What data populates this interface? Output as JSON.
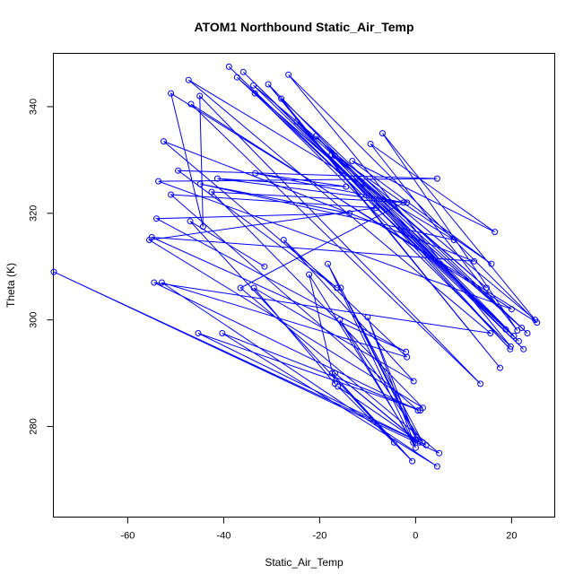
{
  "chart_data": {
    "type": "line",
    "title": "ATOM1 Northbound Static_Air_Temp",
    "xlabel": "Static_Air_Temp",
    "ylabel": "Theta (K)",
    "xlim": [
      -75.5,
      29
    ],
    "ylim": [
      263,
      350
    ],
    "xticks": [
      -60,
      -40,
      -20,
      0,
      20
    ],
    "yticks": [
      280,
      300,
      320,
      340
    ],
    "grid": false,
    "legend": "none",
    "colors": {
      "series": "#0000ff",
      "axes": "#000000"
    },
    "series": [
      {
        "x": [
          -38.9,
          22.5,
          -35.9,
          20.5,
          -30.7,
          17.6,
          -28.0,
          23.3,
          -24.8,
          19.7,
          -20.7,
          18.8,
          -17.5,
          14.8,
          -16.8,
          15.8,
          -13.2,
          16.5,
          -9.4,
          21.2,
          -6.9,
          24.9,
          -33.8,
          21.5,
          -37.2,
          22.1,
          -33.5,
          19.8,
          -26.5,
          25.3,
          -51.0,
          -44.3,
          -45.0,
          13.5,
          -46.8,
          20.0,
          -53.6,
          4.5,
          -49.5,
          -16.4,
          -52.5,
          12.2,
          -55.0,
          -2.0,
          -54.0,
          -13.8,
          -44.9,
          8.0,
          -47.3,
          15.6,
          -54.5,
          0.5,
          -51.0,
          -8.2,
          -55.5,
          1.5,
          -42.5,
          -1.8,
          -41.3,
          -14.5,
          -33.4,
          -2.5,
          -36.5,
          4.9,
          -75.4,
          2.2,
          -45.3,
          1.0,
          -40.3,
          4.5,
          -52.9,
          -1.8,
          -27.5,
          -0.4,
          -33.7,
          -16.8,
          -22.2,
          -0.5,
          -18.3,
          1.5,
          -15.8,
          0.0,
          -10.0,
          0.2,
          -15.6,
          0.8,
          -16.8,
          0.0,
          -16.2,
          -0.7,
          -17.4,
          -4.5,
          -47.0,
          -31.5
        ],
        "y": [
          347.5,
          294.5,
          346.5,
          297.0,
          344.2,
          291.0,
          341.5,
          297.5,
          337.2,
          294.5,
          334.5,
          298.2,
          331.0,
          306.0,
          330.8,
          310.5,
          329.8,
          316.5,
          333.0,
          298.0,
          335.0,
          300.0,
          344.0,
          296.0,
          345.5,
          298.5,
          342.5,
          295.0,
          346.0,
          299.5,
          342.5,
          317.5,
          342.0,
          288.0,
          340.5,
          302.0,
          326.0,
          326.5,
          328.0,
          306.0,
          333.5,
          311.0,
          315.5,
          294.0,
          319.0,
          320.0,
          325.5,
          315.0,
          345.0,
          297.5,
          307.0,
          283.0,
          323.5,
          321.0,
          315.0,
          283.5,
          324.0,
          322.0,
          326.5,
          325.0,
          327.5,
          322.0,
          306.0,
          275.0,
          309.0,
          276.5,
          297.5,
          283.0,
          297.5,
          272.5,
          307.0,
          293.0,
          315.0,
          288.5,
          306.0,
          288.0,
          308.5,
          277.0,
          310.5,
          277.0,
          300.0,
          276.0,
          300.5,
          277.5,
          306.0,
          277.0,
          290.0,
          277.5,
          287.5,
          273.5,
          290.0,
          277.0,
          318.5,
          310.0
        ]
      }
    ]
  }
}
